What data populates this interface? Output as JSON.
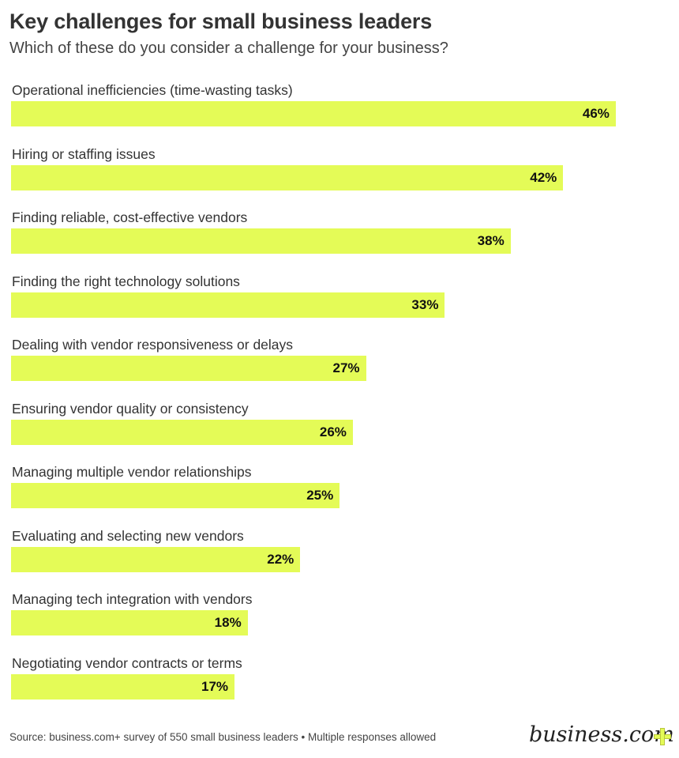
{
  "header": {
    "title": "Key challenges for small business leaders",
    "subtitle": "Which of these do you consider a challenge for your business?"
  },
  "footer": {
    "source": "Source: business.com+ survey of 550 small business leaders • Multiple responses allowed",
    "logo_text": "business.com",
    "logo_icon": "plus-icon"
  },
  "colors": {
    "bar": "#e4fb57",
    "text": "#333333",
    "background": "#ffffff"
  },
  "chart_data": {
    "type": "bar",
    "orientation": "horizontal",
    "title": "Key challenges for small business leaders",
    "subtitle": "Which of these do you consider a challenge for your business?",
    "xlabel": "",
    "ylabel": "",
    "unit": "%",
    "categories": [
      "Operational inefficiencies (time-wasting tasks)",
      "Hiring or staffing issues",
      "Finding reliable, cost-effective vendors",
      "Finding the right technology solutions",
      "Dealing with vendor responsiveness or delays",
      "Ensuring vendor quality or consistency",
      "Managing multiple vendor relationships",
      "Evaluating and selecting new vendors",
      "Managing tech integration with vendors",
      "Negotiating vendor contracts or terms"
    ],
    "values": [
      46,
      42,
      38,
      33,
      27,
      26,
      25,
      22,
      18,
      17
    ],
    "value_labels": [
      "46%",
      "42%",
      "38%",
      "33%",
      "27%",
      "26%",
      "25%",
      "22%",
      "18%",
      "17%"
    ],
    "grid": false,
    "legend": null,
    "source": "Source: business.com+ survey of 550 small business leaders • Multiple responses allowed"
  }
}
